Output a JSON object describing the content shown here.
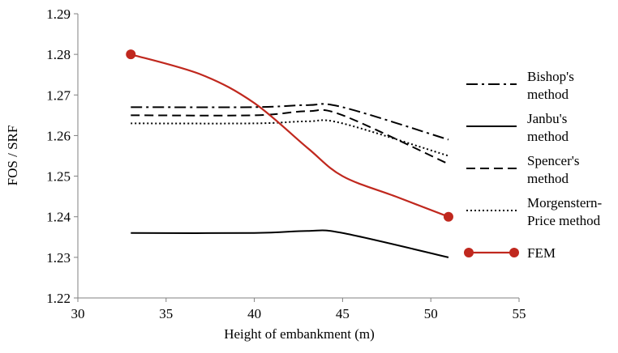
{
  "chart_data": {
    "type": "line",
    "title": "",
    "xlabel": "Height of embankment (m)",
    "ylabel": "FOS / SRF",
    "xlim": [
      30,
      55
    ],
    "ylim": [
      1.22,
      1.29
    ],
    "x_ticks": [
      "30",
      "35",
      "40",
      "45",
      "50",
      "55"
    ],
    "y_ticks": [
      "1.22",
      "1.23",
      "1.24",
      "1.25",
      "1.26",
      "1.27",
      "1.28",
      "1.29"
    ],
    "grid": false,
    "legend_position": "right",
    "series": [
      {
        "name_lines": [
          "Bishop's",
          "method"
        ],
        "style": "dash-dot",
        "color": "#000000",
        "x": [
          33,
          40,
          43,
          45,
          51
        ],
        "y": [
          1.267,
          1.267,
          1.2675,
          1.267,
          1.259
        ]
      },
      {
        "name_lines": [
          "Janbu's",
          "method"
        ],
        "style": "solid",
        "color": "#000000",
        "x": [
          33,
          40,
          43,
          45,
          51
        ],
        "y": [
          1.236,
          1.236,
          1.2365,
          1.236,
          1.23
        ]
      },
      {
        "name_lines": [
          "Spencer's",
          "method"
        ],
        "style": "dashed",
        "color": "#000000",
        "x": [
          33,
          40,
          43,
          45,
          51
        ],
        "y": [
          1.265,
          1.265,
          1.266,
          1.265,
          1.253
        ]
      },
      {
        "name_lines": [
          "Morgenstern-",
          "Price method"
        ],
        "style": "dotted",
        "color": "#000000",
        "x": [
          33,
          40,
          43,
          45,
          51
        ],
        "y": [
          1.263,
          1.263,
          1.2635,
          1.263,
          1.255
        ]
      },
      {
        "name_lines": [
          "FEM"
        ],
        "style": "solid-marker",
        "color": "#c0281e",
        "x": [
          33,
          37,
          40,
          43,
          45,
          48,
          51
        ],
        "y": [
          1.28,
          1.275,
          1.268,
          1.257,
          1.25,
          1.245,
          1.24
        ],
        "markers": [
          [
            33,
            1.28
          ],
          [
            51,
            1.24
          ]
        ]
      }
    ]
  }
}
